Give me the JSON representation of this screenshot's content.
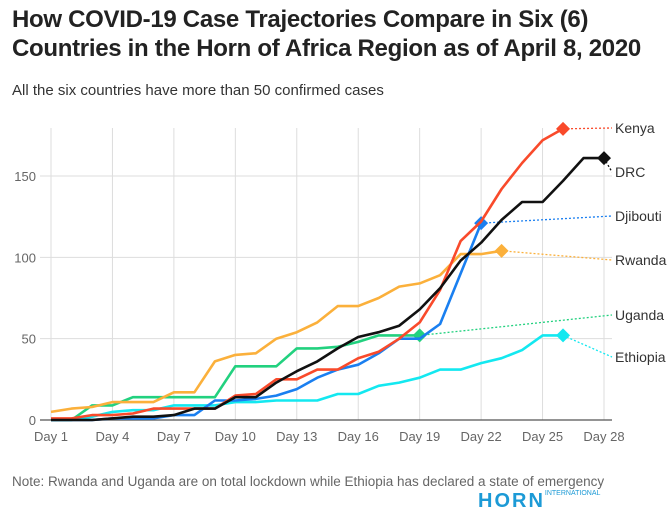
{
  "title": "How COVID-19 Case Trajectories Compare in Six (6) Countries in the Horn of Africa Region as of April 8, 2020",
  "subtitle": "All the six countries have more than 50 confirmed cases",
  "note": "Note: Rwanda and Uganda are on total lockdown while Ethiopia has declared a state of emergency",
  "logo": {
    "text": "HORN",
    "sub": "INTERNATIONAL"
  },
  "chart_data": {
    "type": "line",
    "title": "How COVID-19 Case Trajectories Compare in Six (6) Countries in the Horn of Africa Region as of April 8, 2020",
    "xlabel": "",
    "ylabel": "",
    "x_ticks": [
      "Day 1",
      "Day 4",
      "Day 7",
      "Day 10",
      "Day 13",
      "Day 16",
      "Day 19",
      "Day 22",
      "Day 25",
      "Day 28"
    ],
    "y_ticks": [
      0,
      50,
      100,
      150
    ],
    "xlim": [
      1,
      28
    ],
    "ylim": [
      0,
      180
    ],
    "grid": true,
    "legend": "direct labels at right",
    "series": [
      {
        "name": "Kenya",
        "color": "#f94a2b",
        "start_day": 1,
        "values": [
          1,
          1,
          3,
          3,
          4,
          7,
          7,
          7,
          7,
          15,
          16,
          25,
          25,
          31,
          31,
          38,
          42,
          50,
          60,
          80,
          110,
          122,
          142,
          158,
          172,
          179
        ]
      },
      {
        "name": "DRC",
        "color": "#111111",
        "start_day": 1,
        "values": [
          0,
          0,
          0,
          1,
          2,
          2,
          3,
          7,
          7,
          14,
          14,
          23,
          30,
          36,
          44,
          51,
          54,
          58,
          68,
          81,
          98,
          109,
          123,
          134,
          134,
          147,
          161,
          161
        ]
      },
      {
        "name": "Djibouti",
        "color": "#1a7ff0",
        "start_day": 1,
        "values": [
          0,
          0,
          0,
          1,
          1,
          1,
          3,
          3,
          12,
          12,
          13,
          15,
          19,
          26,
          31,
          34,
          41,
          50,
          50,
          59,
          90,
          121
        ]
      },
      {
        "name": "Rwanda",
        "color": "#fbb03b",
        "start_day": 1,
        "values": [
          5,
          7,
          8,
          11,
          11,
          11,
          17,
          17,
          36,
          40,
          41,
          50,
          54,
          60,
          70,
          70,
          75,
          82,
          84,
          89,
          102,
          102,
          104
        ]
      },
      {
        "name": "Uganda",
        "color": "#22d17f",
        "start_day": 1,
        "values": [
          0,
          0,
          9,
          9,
          14,
          14,
          14,
          14,
          14,
          33,
          33,
          33,
          44,
          44,
          45,
          48,
          52,
          52,
          52
        ]
      },
      {
        "name": "Ethiopia",
        "color": "#13e8f0",
        "start_day": 1,
        "values": [
          0,
          0,
          2,
          5,
          6,
          6,
          9,
          9,
          9,
          11,
          11,
          12,
          12,
          12,
          16,
          16,
          21,
          23,
          26,
          31,
          31,
          35,
          38,
          43,
          52,
          52
        ]
      }
    ]
  }
}
